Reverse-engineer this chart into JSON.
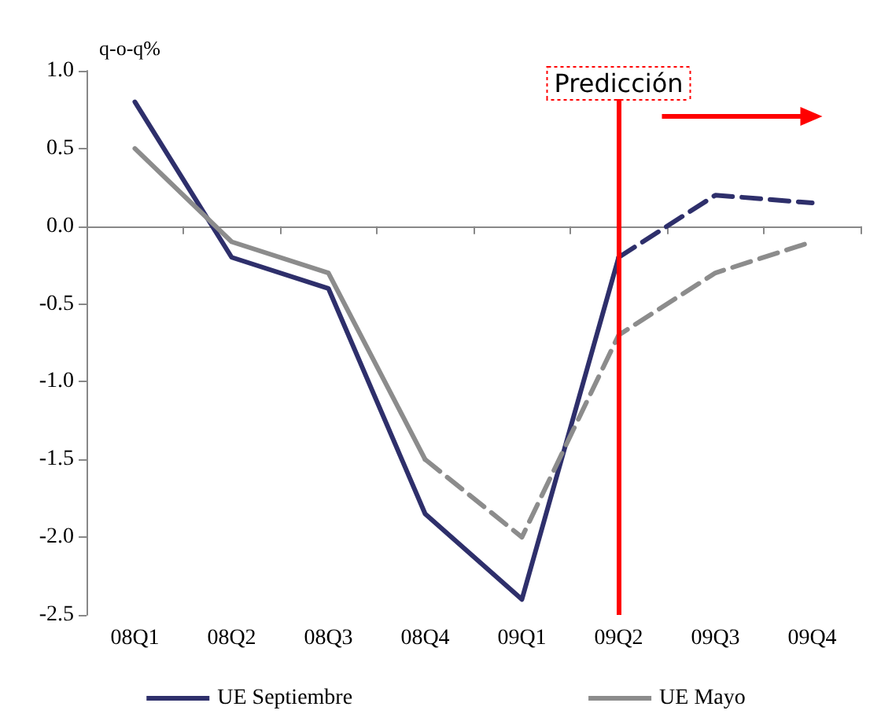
{
  "chart_data": {
    "type": "line",
    "ylabel": "q-o-q%",
    "categories": [
      "08Q1",
      "08Q2",
      "08Q3",
      "08Q4",
      "09Q1",
      "09Q2",
      "09Q3",
      "09Q4"
    ],
    "series": [
      {
        "name": "UE Septiembre",
        "color": "#2e2f6b",
        "line_style": "solid",
        "values": [
          0.8,
          -0.2,
          -0.4,
          -1.85,
          -2.4,
          -0.2,
          null,
          null
        ]
      },
      {
        "color": "#2e2f6b",
        "line_style": "dashed",
        "values": [
          null,
          null,
          null,
          null,
          null,
          -0.2,
          0.2,
          0.15
        ]
      },
      {
        "name": "UE Mayo",
        "color": "#8c8c8c",
        "line_style": "solid",
        "values": [
          0.5,
          -0.1,
          -0.3,
          -1.5,
          null,
          null,
          null,
          null
        ]
      },
      {
        "color": "#8c8c8c",
        "line_style": "dashed",
        "values": [
          null,
          null,
          null,
          -1.5,
          -2.0,
          -0.7,
          -0.3,
          -0.1
        ]
      }
    ],
    "ylim": [
      -2.5,
      1.0
    ],
    "yticks": [
      {
        "value": -2.5,
        "label": "-2.5"
      },
      {
        "value": -2,
        "label": "-2.0"
      },
      {
        "value": -1.5,
        "label": "-1.5"
      },
      {
        "value": -1,
        "label": "-1.0"
      },
      {
        "value": -0.5,
        "label": "-0.5"
      },
      {
        "value": 0,
        "label": "0.0"
      },
      {
        "value": 0.5,
        "label": "0.5"
      },
      {
        "value": 1,
        "label": "1.0"
      }
    ],
    "ref_lines": [
      {
        "axis": "x",
        "value": "09Q2",
        "label": "Predicción",
        "color": "#ff0000"
      }
    ],
    "grid": false,
    "legend": "bottom",
    "marker": "none"
  }
}
